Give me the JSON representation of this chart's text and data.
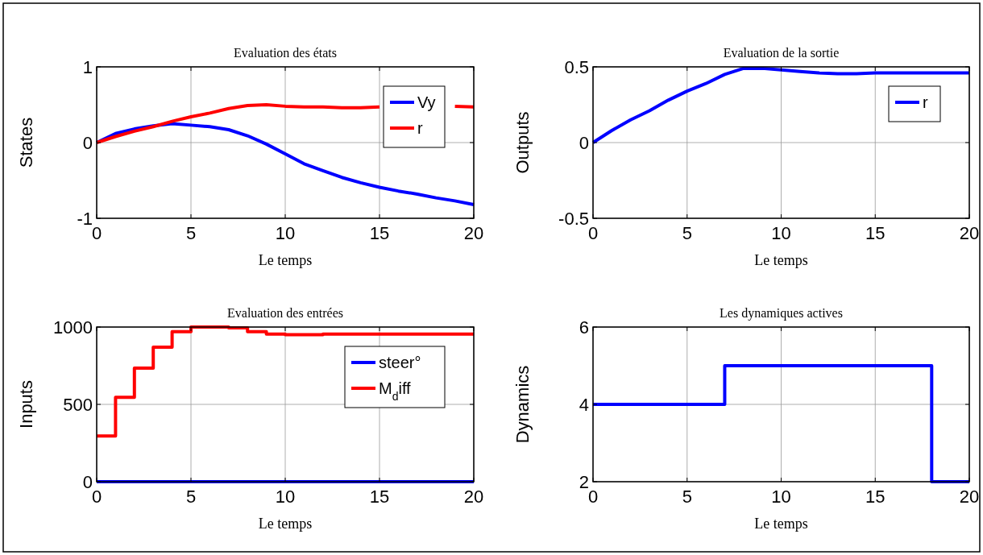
{
  "chart_data": [
    {
      "type": "line",
      "title": "Evaluation des états",
      "xlabel": "Le temps",
      "ylabel": "States",
      "x": [
        0,
        1,
        2,
        3,
        4,
        5,
        6,
        7,
        8,
        9,
        10,
        11,
        12,
        13,
        14,
        15,
        16,
        17,
        18,
        19,
        20
      ],
      "xlim": [
        0,
        20
      ],
      "xticks": [
        0,
        5,
        10,
        15,
        20
      ],
      "ylim": [
        -1,
        1
      ],
      "yticks": [
        -1,
        0,
        1
      ],
      "grid": true,
      "legend": "top right",
      "series": [
        {
          "name": "Vy",
          "color": "#0000ff",
          "values": [
            0,
            0.12,
            0.18,
            0.22,
            0.25,
            0.23,
            0.21,
            0.17,
            0.09,
            -0.02,
            -0.15,
            -0.28,
            -0.37,
            -0.46,
            -0.53,
            -0.59,
            -0.64,
            -0.68,
            -0.73,
            -0.77,
            -0.82
          ]
        },
        {
          "name": "r",
          "color": "#ff0000",
          "values": [
            0,
            0.08,
            0.15,
            0.21,
            0.28,
            0.34,
            0.39,
            0.45,
            0.49,
            0.5,
            0.48,
            0.47,
            0.47,
            0.46,
            0.46,
            0.47,
            null,
            null,
            null,
            0.48,
            0.47
          ]
        }
      ]
    },
    {
      "type": "line",
      "title": "Evaluation de la sortie",
      "xlabel": "Le temps",
      "ylabel": "Outputs",
      "x": [
        0,
        1,
        2,
        3,
        4,
        5,
        6,
        7,
        8,
        9,
        10,
        11,
        12,
        13,
        14,
        15,
        16,
        17,
        18,
        19,
        20
      ],
      "xlim": [
        0,
        20
      ],
      "xticks": [
        0,
        5,
        10,
        15,
        20
      ],
      "ylim": [
        -0.5,
        0.5
      ],
      "yticks": [
        -0.5,
        0,
        0.5
      ],
      "grid": true,
      "legend": "top right",
      "series": [
        {
          "name": "r",
          "color": "#0000ff",
          "values": [
            0,
            0.08,
            0.15,
            0.21,
            0.28,
            0.34,
            0.39,
            0.45,
            0.49,
            0.49,
            0.48,
            0.47,
            0.46,
            0.455,
            0.455,
            0.46,
            0.46,
            0.46,
            0.46,
            0.46,
            0.46
          ]
        }
      ]
    },
    {
      "type": "step",
      "title": "Evaluation des entrées",
      "xlabel": "Le temps",
      "ylabel": "Inputs",
      "x": [
        0,
        1,
        2,
        3,
        4,
        5,
        6,
        7,
        8,
        9,
        10,
        11,
        12,
        13,
        14,
        15,
        16,
        17,
        18,
        19,
        20
      ],
      "xlim": [
        0,
        20
      ],
      "xticks": [
        0,
        5,
        10,
        15,
        20
      ],
      "ylim": [
        0,
        1000
      ],
      "yticks": [
        0,
        500,
        1000
      ],
      "grid": true,
      "legend": "top right",
      "series": [
        {
          "name": "steer°",
          "color": "#0000ff",
          "values": [
            0,
            0,
            0,
            0,
            0,
            0,
            0,
            0,
            0,
            0,
            0,
            0,
            0,
            0,
            0,
            0,
            0,
            0,
            0,
            0,
            0
          ]
        },
        {
          "name": "M$_{d}$iff",
          "color": "#ff0000",
          "values": [
            295,
            545,
            735,
            870,
            970,
            1000,
            1000,
            995,
            970,
            955,
            950,
            950,
            955,
            955,
            955,
            955,
            955,
            955,
            955,
            955,
            955
          ]
        }
      ]
    },
    {
      "type": "step",
      "title": "Les dynamiques actives",
      "xlabel": "Le temps",
      "ylabel": "Dynamics",
      "x": [
        0,
        7,
        18,
        20
      ],
      "xlim": [
        0,
        20
      ],
      "xticks": [
        0,
        5,
        10,
        15,
        20
      ],
      "ylim": [
        2,
        6
      ],
      "yticks": [
        2,
        4,
        6
      ],
      "grid": true,
      "series": [
        {
          "color": "#0000ff",
          "values": [
            4,
            5,
            2,
            2
          ]
        }
      ]
    }
  ]
}
